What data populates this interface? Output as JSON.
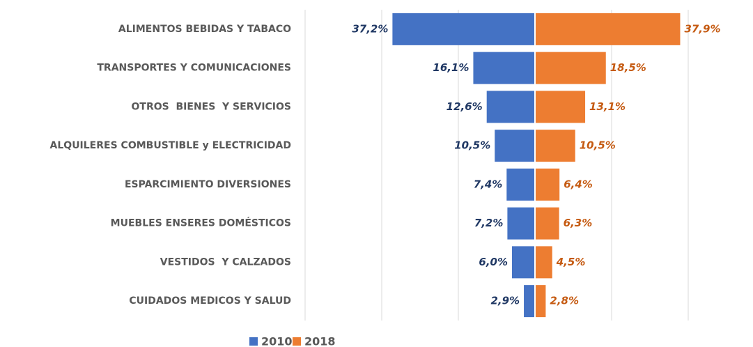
{
  "chart_data": {
    "type": "butterfly",
    "categories": [
      "ALIMENTOS BEBIDAS Y TABACO",
      "TRANSPORTES Y COMUNICACIONES",
      "OTROS  BIENES  Y SERVICIOS",
      "ALQUILERES COMBUSTIBLE y ELECTRICIDAD",
      "ESPARCIMIENTO DIVERSIONES",
      "MUEBLES ENSERES DOMÉSTICOS",
      "VESTIDOS  Y CALZADOS",
      "CUIDADOS MEDICOS Y SALUD"
    ],
    "series": [
      {
        "name": "2010",
        "color": "#4472c4",
        "values": [
          37.2,
          16.1,
          12.6,
          10.5,
          7.4,
          7.2,
          6.0,
          2.9
        ],
        "value_labels": [
          "37,2%",
          "16,1%",
          "12,6%",
          "10,5%",
          "7,4%",
          "7,2%",
          "6,0%",
          "2,9%"
        ]
      },
      {
        "name": "2018",
        "color": "#ed7d31",
        "values": [
          37.9,
          18.5,
          13.1,
          10.5,
          6.4,
          6.3,
          4.5,
          2.8
        ],
        "value_labels": [
          "37,9%",
          "18,5%",
          "13,1%",
          "10,5%",
          "6,4%",
          "6,3%",
          "4,5%",
          "2,8%"
        ]
      }
    ],
    "xlim": [
      -60,
      40
    ],
    "xticks": [
      -60,
      -40,
      -20,
      0,
      20,
      40
    ],
    "grid": true
  }
}
